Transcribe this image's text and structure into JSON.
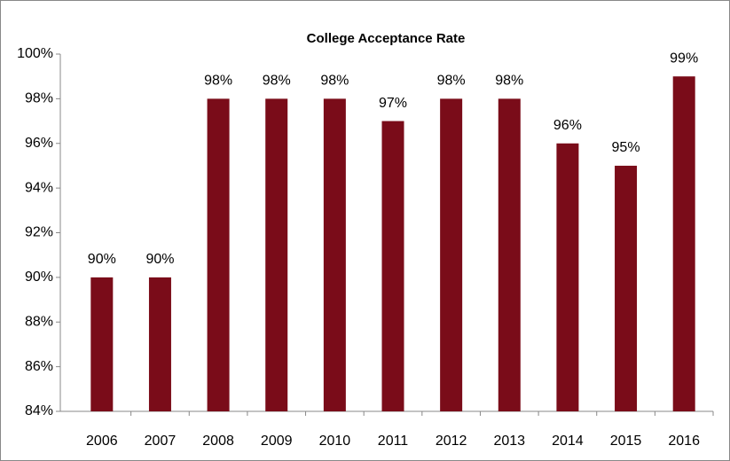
{
  "chart_data": {
    "type": "bar",
    "title": "College  Acceptance Rate",
    "categories": [
      "2006",
      "2007",
      "2008",
      "2009",
      "2010",
      "2011",
      "2012",
      "2013",
      "2014",
      "2015",
      "2016"
    ],
    "values": [
      90,
      90,
      98,
      98,
      98,
      97,
      98,
      98,
      96,
      95,
      99
    ],
    "value_labels": [
      "90%",
      "90%",
      "98%",
      "98%",
      "98%",
      "97%",
      "98%",
      "98%",
      "96%",
      "95%",
      "99%"
    ],
    "color": "#7a0c19",
    "ylim": [
      84,
      100
    ],
    "yticks": [
      {
        "value": 84,
        "label": "84%"
      },
      {
        "value": 86,
        "label": "86%"
      },
      {
        "value": 88,
        "label": "88%"
      },
      {
        "value": 90,
        "label": "90%"
      },
      {
        "value": 92,
        "label": "92%"
      },
      {
        "value": 94,
        "label": "94%"
      },
      {
        "value": 96,
        "label": "96%"
      },
      {
        "value": 98,
        "label": "98%"
      },
      {
        "value": 100,
        "label": "100%"
      }
    ],
    "grid": false
  }
}
